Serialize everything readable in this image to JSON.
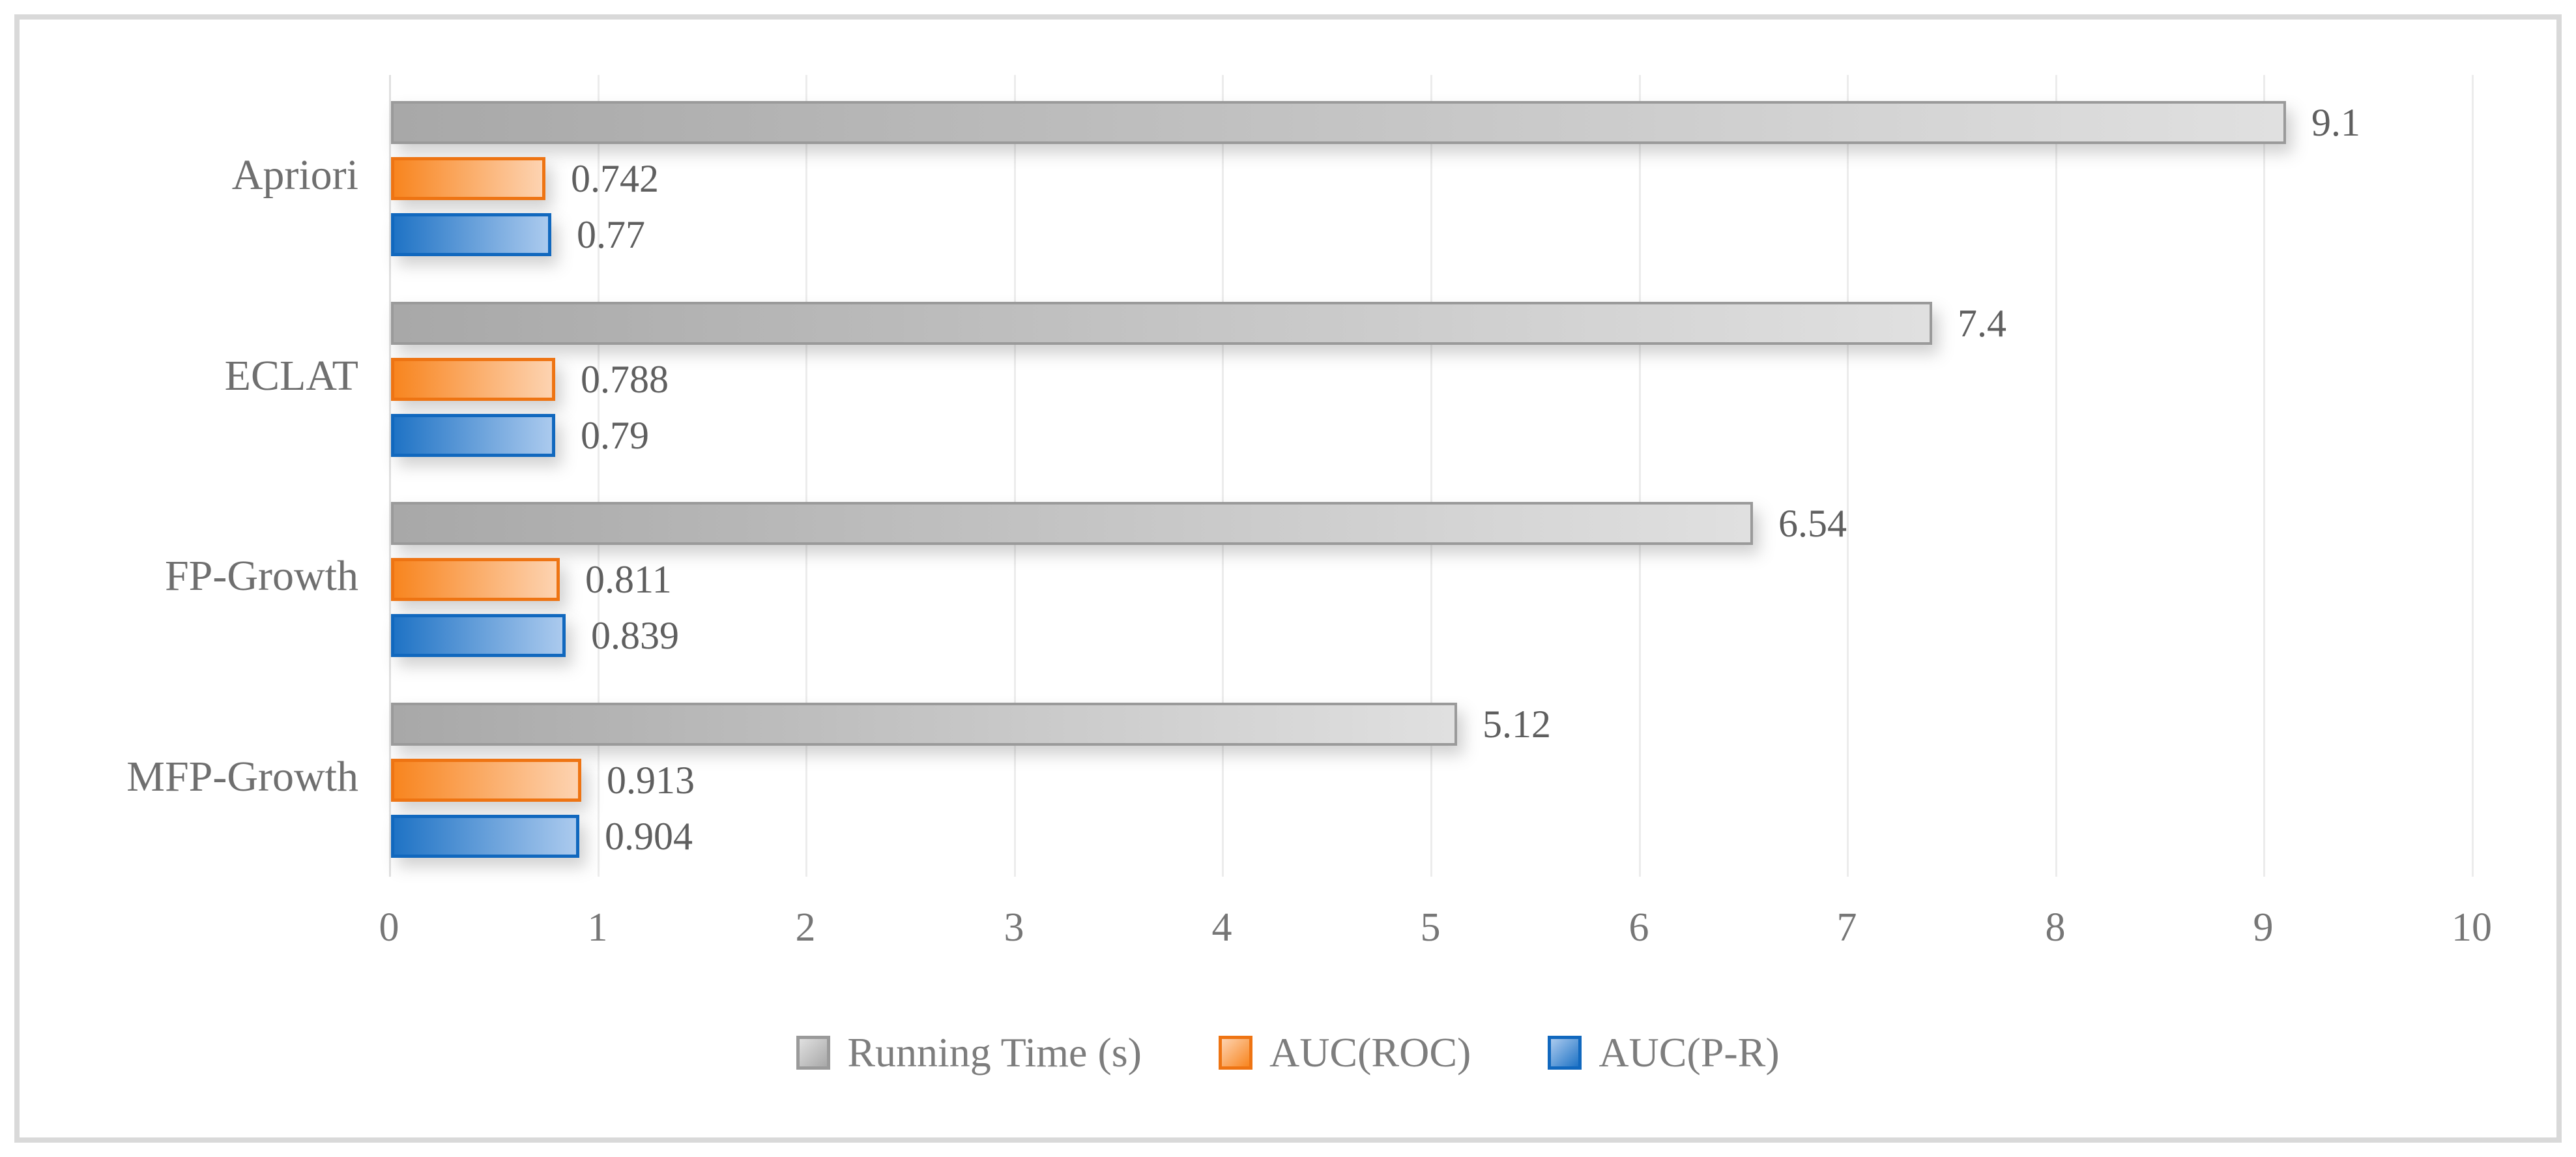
{
  "chart_data": {
    "type": "bar",
    "orientation": "horizontal",
    "title": "",
    "xlabel": "",
    "ylabel": "",
    "grid": true,
    "legend_position": "bottom",
    "categories": [
      "Apriori",
      "ECLAT",
      "FP-Growth",
      "MFP-Growth"
    ],
    "series": [
      {
        "name": "Running Time (s)",
        "values": [
          9.1,
          7.4,
          6.54,
          5.12
        ],
        "labels": [
          "9.1",
          "7.4",
          "6.54",
          "5.12"
        ],
        "border_color": "#9a9a9a",
        "fill_start": "#a8a8a8",
        "fill_end": "#e0e0e0"
      },
      {
        "name": "AUC(ROC)",
        "values": [
          0.742,
          0.788,
          0.811,
          0.913
        ],
        "labels": [
          "0.742",
          "0.788",
          "0.811",
          "0.913"
        ],
        "border_color": "#ee7413",
        "fill_start": "#f8851f",
        "fill_end": "#fdd3b1"
      },
      {
        "name": "AUC(P-R)",
        "values": [
          0.77,
          0.79,
          0.839,
          0.904
        ],
        "labels": [
          "0.77",
          "0.79",
          "0.839",
          "0.904"
        ],
        "border_color": "#1168be",
        "fill_start": "#1f73c5",
        "fill_end": "#abcaee"
      }
    ],
    "x_axis": {
      "min": 0,
      "max": 10,
      "tick_labels": [
        "0",
        "1",
        "2",
        "3",
        "4",
        "5",
        "6",
        "7",
        "8",
        "9",
        "10"
      ],
      "tick_color": "#767676"
    },
    "colors": {
      "frame_border": "#d9d9d9",
      "gridline": "#ececec",
      "data_label": "#5f5f5f",
      "category_label": "#6f6f6f",
      "legend_label": "#7d7d7d",
      "background": "#ffffff"
    }
  }
}
